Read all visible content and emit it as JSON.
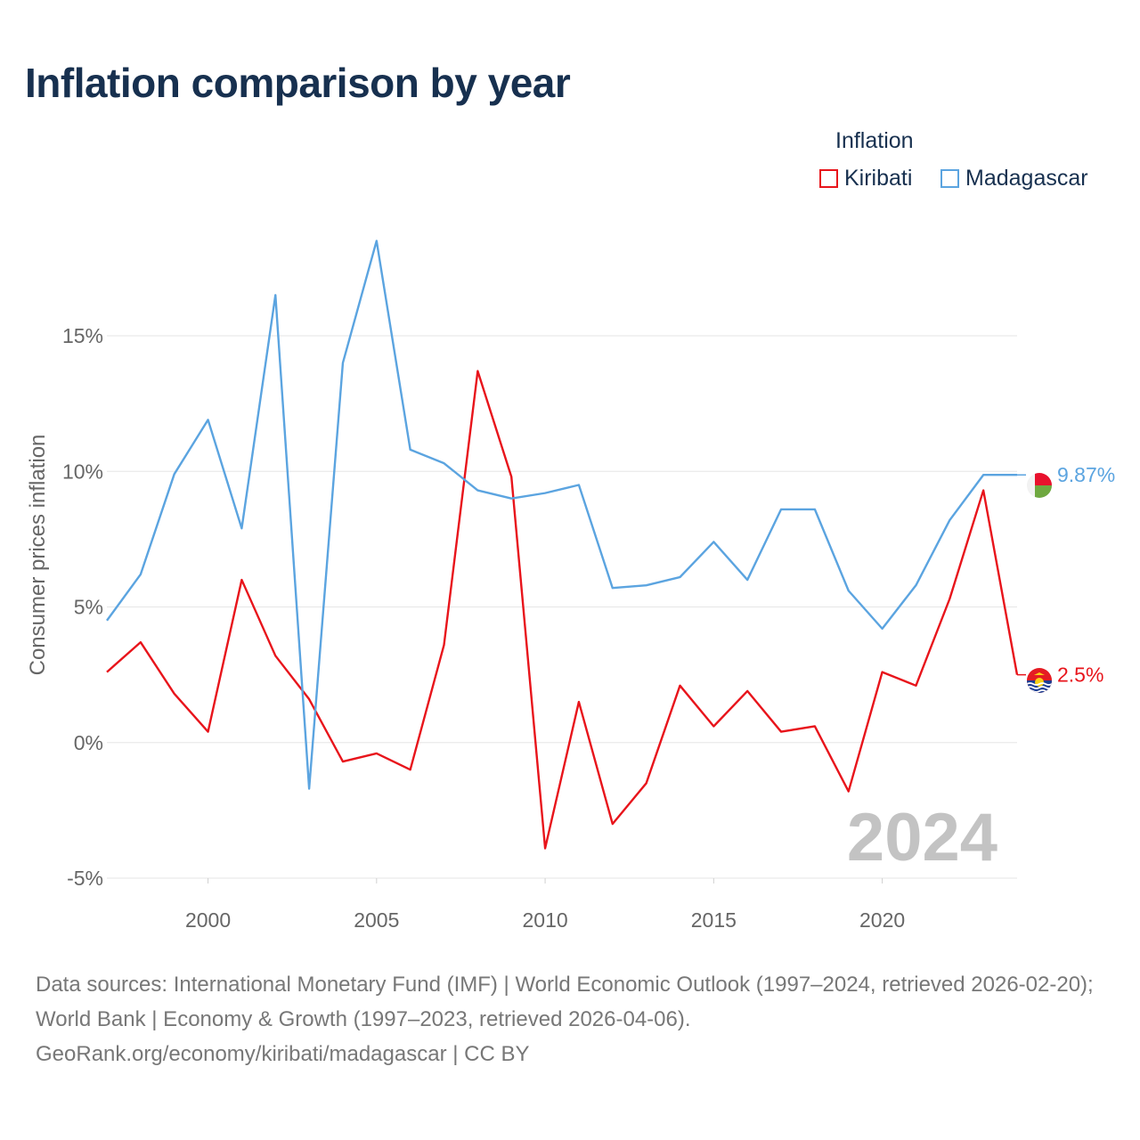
{
  "title": "Inflation comparison by year",
  "legend": {
    "title": "Inflation",
    "items": [
      {
        "label": "Kiribati",
        "color": "#e8141b"
      },
      {
        "label": "Madagascar",
        "color": "#5ba4e0"
      }
    ]
  },
  "chart_data": {
    "type": "line",
    "ylabel": "Consumer prices inflation",
    "xlabel": "",
    "ylim": [
      -5.9,
      19.5
    ],
    "xlim": [
      1997,
      2024
    ],
    "yticks": [
      -5,
      0,
      5,
      10,
      15
    ],
    "ytick_labels": [
      "-5%",
      "0%",
      "5%",
      "10%",
      "15%"
    ],
    "xticks": [
      2000,
      2005,
      2010,
      2015,
      2020
    ],
    "xtick_labels": [
      "2000",
      "2005",
      "2010",
      "2015",
      "2020"
    ],
    "grid": true,
    "year_label": "2024",
    "x": [
      1997,
      1998,
      1999,
      2000,
      2001,
      2002,
      2003,
      2004,
      2005,
      2006,
      2007,
      2008,
      2009,
      2010,
      2011,
      2012,
      2013,
      2014,
      2015,
      2016,
      2017,
      2018,
      2019,
      2020,
      2021,
      2022,
      2023,
      2024
    ],
    "series": [
      {
        "name": "Kiribati",
        "color": "#e8141b",
        "values": [
          2.6,
          3.7,
          1.8,
          0.4,
          6.0,
          3.2,
          1.6,
          -0.7,
          -0.4,
          -1.0,
          3.6,
          13.7,
          9.8,
          -3.9,
          1.5,
          -3.0,
          -1.5,
          2.1,
          0.6,
          1.9,
          0.4,
          0.6,
          -1.8,
          2.6,
          2.1,
          5.3,
          9.3,
          2.5
        ],
        "end_label": "2.5%",
        "flag": "kiribati-flag"
      },
      {
        "name": "Madagascar",
        "color": "#5ba4e0",
        "values": [
          4.5,
          6.2,
          9.9,
          11.9,
          7.9,
          16.5,
          -1.7,
          14.0,
          18.5,
          10.8,
          10.3,
          9.3,
          9.0,
          9.2,
          9.5,
          5.7,
          5.8,
          6.1,
          7.4,
          6.0,
          8.6,
          8.6,
          5.6,
          4.2,
          5.8,
          8.2,
          9.87,
          9.87
        ],
        "end_label": "9.87%",
        "flag": "madagascar-flag"
      }
    ]
  },
  "footer": {
    "line1": "Data sources: International Monetary Fund (IMF) | World Economic Outlook (1997–2024, retrieved 2026-02-20); World Bank | Economy & Growth (1997–2023, retrieved 2026-04-06).",
    "line2": "GeoRank.org/economy/kiribati/madagascar | CC BY"
  }
}
